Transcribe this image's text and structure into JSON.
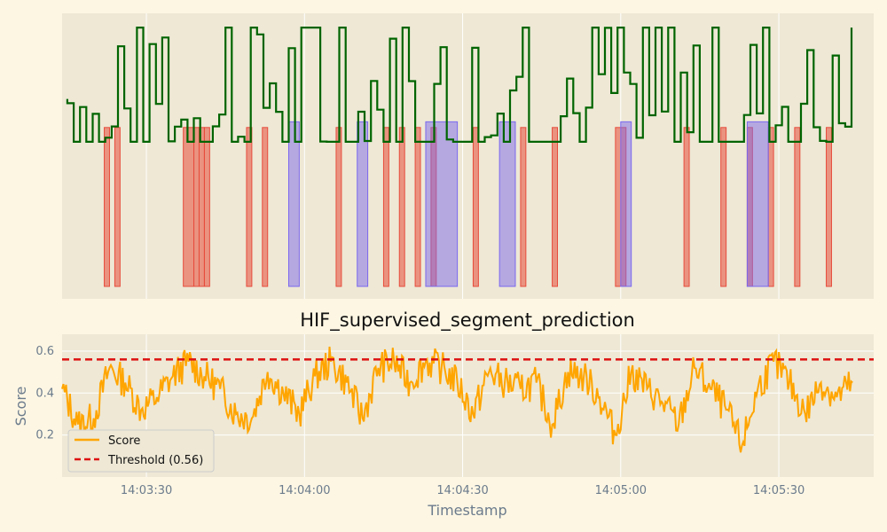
{
  "colors": {
    "figure_bg": "#fdf6e3",
    "axes_bg": "#eee8d5",
    "grid": "#ffffff",
    "signal": "#006400",
    "label_segment_line": "#e74c3c",
    "label_segment_fill": "#e74c3c",
    "predicted_segment": "#7b68ee",
    "score": "#ffa500",
    "threshold": "#dd1111",
    "axis_text": "#6b7b8c",
    "title_text": "#111111"
  },
  "chart_data": [
    {
      "type": "line",
      "panel": "signal",
      "title": "",
      "xlabel": "",
      "ylabel": "",
      "x_axis": "time",
      "xlim": [
        "14:03:14",
        "14:05:48"
      ],
      "y_ticks_shown": false,
      "grid": true,
      "signal_levels": [
        0.31,
        0.55,
        0.85
      ],
      "label_segments": [
        [
          "14:03:22",
          "14:03:23"
        ],
        [
          "14:03:24",
          "14:03:25"
        ],
        [
          "14:03:37",
          "14:03:39"
        ],
        [
          "14:03:39",
          "14:03:40"
        ],
        [
          "14:03:40",
          "14:03:41"
        ],
        [
          "14:03:41",
          "14:03:42"
        ],
        [
          "14:03:49",
          "14:03:50"
        ],
        [
          "14:03:52",
          "14:03:53"
        ],
        [
          "14:04:06",
          "14:04:07"
        ],
        [
          "14:04:15",
          "14:04:16"
        ],
        [
          "14:04:18",
          "14:04:19"
        ],
        [
          "14:04:21",
          "14:04:22"
        ],
        [
          "14:04:24",
          "14:04:25"
        ],
        [
          "14:04:32",
          "14:04:33"
        ],
        [
          "14:04:41",
          "14:04:42"
        ],
        [
          "14:04:47",
          "14:04:48"
        ],
        [
          "14:04:59",
          "14:05:01"
        ],
        [
          "14:05:12",
          "14:05:13"
        ],
        [
          "14:05:19",
          "14:05:20"
        ],
        [
          "14:05:24",
          "14:05:25"
        ],
        [
          "14:05:28",
          "14:05:29"
        ],
        [
          "14:05:33",
          "14:05:34"
        ],
        [
          "14:05:39",
          "14:05:40"
        ]
      ],
      "predicted_segments": [
        [
          "14:03:57",
          "14:03:59"
        ],
        [
          "14:04:10",
          "14:04:12"
        ],
        [
          "14:04:23",
          "14:04:29"
        ],
        [
          "14:04:37",
          "14:04:40"
        ],
        [
          "14:05:00",
          "14:05:02"
        ],
        [
          "14:05:24",
          "14:05:28"
        ]
      ]
    },
    {
      "type": "line",
      "panel": "score",
      "title": "HIF_supervised_segment_prediction",
      "xlabel": "Timestamp",
      "ylabel": "Score",
      "x_axis": "time",
      "xlim": [
        "14:03:14",
        "14:05:48"
      ],
      "x_ticks": [
        "14:03:30",
        "14:04:00",
        "14:04:30",
        "14:05:00",
        "14:05:30"
      ],
      "ylim": [
        0.0,
        0.68
      ],
      "y_ticks": [
        "0.2",
        "0.4",
        "0.6"
      ],
      "grid": true,
      "legend_location": "lower-left",
      "series": [
        {
          "name": "Score",
          "style": "solid",
          "x": [
            "14:03:14",
            "14:03:17",
            "14:03:20",
            "14:03:23",
            "14:03:26",
            "14:03:29",
            "14:03:32",
            "14:03:35",
            "14:03:38",
            "14:03:41",
            "14:03:44",
            "14:03:47",
            "14:03:50",
            "14:03:53",
            "14:03:56",
            "14:03:59",
            "14:04:02",
            "14:04:05",
            "14:04:08",
            "14:04:11",
            "14:04:14",
            "14:04:17",
            "14:04:20",
            "14:04:23",
            "14:04:26",
            "14:04:29",
            "14:04:32",
            "14:04:35",
            "14:04:38",
            "14:04:41",
            "14:04:44",
            "14:04:47",
            "14:04:50",
            "14:04:53",
            "14:04:56",
            "14:04:59",
            "14:05:02",
            "14:05:05",
            "14:05:08",
            "14:05:11",
            "14:05:14",
            "14:05:17",
            "14:05:20",
            "14:05:23",
            "14:05:26",
            "14:05:29",
            "14:05:32",
            "14:05:35",
            "14:05:38",
            "14:05:41",
            "14:05:44"
          ],
          "y": [
            0.42,
            0.25,
            0.28,
            0.52,
            0.45,
            0.32,
            0.38,
            0.48,
            0.55,
            0.48,
            0.42,
            0.3,
            0.28,
            0.5,
            0.4,
            0.3,
            0.48,
            0.55,
            0.45,
            0.28,
            0.52,
            0.55,
            0.45,
            0.55,
            0.52,
            0.45,
            0.3,
            0.5,
            0.45,
            0.42,
            0.45,
            0.25,
            0.5,
            0.48,
            0.38,
            0.2,
            0.5,
            0.42,
            0.35,
            0.25,
            0.52,
            0.42,
            0.32,
            0.15,
            0.42,
            0.55,
            0.45,
            0.3,
            0.45,
            0.38,
            0.45
          ]
        },
        {
          "name": "Threshold (0.56)",
          "style": "dashed",
          "y": 0.56
        }
      ]
    }
  ]
}
